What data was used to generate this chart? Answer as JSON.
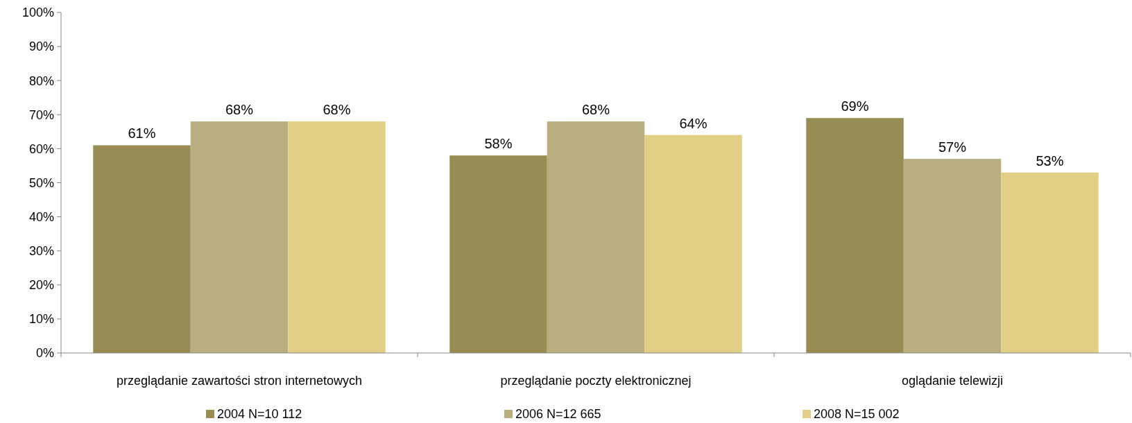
{
  "chart_data": {
    "type": "bar",
    "categories": [
      "przeglądanie zawartości stron internetowych",
      "przeglądanie poczty elektronicznej",
      "oglądanie telewizji"
    ],
    "series": [
      {
        "name": "2004 N=10 112",
        "color": "#978c54",
        "values": [
          61,
          58,
          69
        ],
        "value_labels": [
          "61%",
          "58%",
          "69%"
        ]
      },
      {
        "name": "2006 N=12 665",
        "color": "#b9ae80",
        "values": [
          68,
          68,
          57
        ],
        "value_labels": [
          "68%",
          "68%",
          "57%"
        ]
      },
      {
        "name": "2008 N=15 002",
        "color": "#e0cf84",
        "values": [
          68,
          64,
          53
        ],
        "value_labels": [
          "68%",
          "64%",
          "53%"
        ]
      }
    ],
    "ylim": [
      0,
      100
    ],
    "yticks": [
      {
        "value": 0,
        "label": "0%"
      },
      {
        "value": 10,
        "label": "10%"
      },
      {
        "value": 20,
        "label": "20%"
      },
      {
        "value": 30,
        "label": "30%"
      },
      {
        "value": 40,
        "label": "40%"
      },
      {
        "value": 50,
        "label": "50%"
      },
      {
        "value": 60,
        "label": "60%"
      },
      {
        "value": 70,
        "label": "70%"
      },
      {
        "value": 80,
        "label": "80%"
      },
      {
        "value": 90,
        "label": "90%"
      },
      {
        "value": 100,
        "label": "100%"
      }
    ],
    "grid": false,
    "legend": "bottom"
  }
}
